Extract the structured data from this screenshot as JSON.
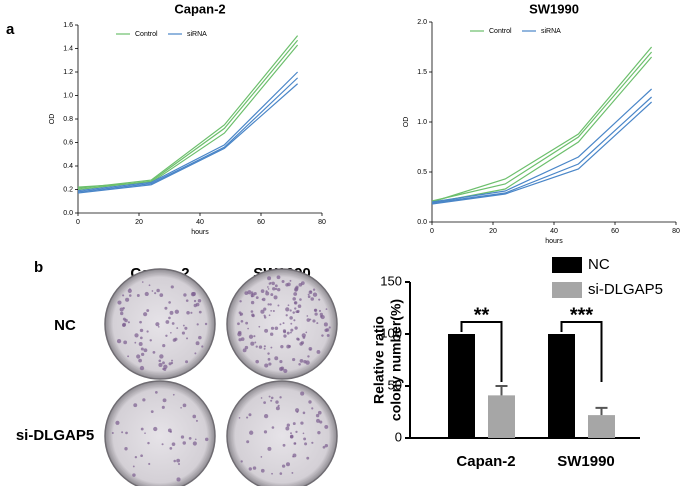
{
  "figure": {
    "panel_a": "a",
    "panel_b": "b",
    "photo_columns": [
      "Capan-2",
      "SW1990"
    ],
    "photo_rows": [
      "NC",
      "si-DLGAP5"
    ]
  },
  "chart_data": [
    {
      "type": "line",
      "title": "Capan-2",
      "xlabel": "hours",
      "ylabel": "OD",
      "x": [
        0,
        24,
        48,
        72
      ],
      "xlim": [
        0,
        80
      ],
      "xticks": [
        0,
        20,
        40,
        60,
        80
      ],
      "ylim": [
        0,
        1.6
      ],
      "yticks": [
        {
          "value": 0,
          "label": "0.0"
        },
        0.2,
        0.4,
        0.6,
        0.8,
        {
          "value": 1,
          "label": "1.0"
        },
        1.2,
        1.4,
        1.6
      ],
      "series": [
        {
          "name": "Control",
          "color": "#6cbf6c",
          "values": [
            0.21,
            0.28,
            0.75,
            1.51
          ]
        },
        {
          "name": "Control",
          "color": "#6cbf6c",
          "values": [
            0.2,
            0.27,
            0.72,
            1.47
          ]
        },
        {
          "name": "Control",
          "color": "#6cbf6c",
          "values": [
            0.22,
            0.26,
            0.68,
            1.43
          ]
        },
        {
          "name": "siRNA",
          "color": "#4a86c8",
          "values": [
            0.19,
            0.26,
            0.58,
            1.2
          ]
        },
        {
          "name": "siRNA",
          "color": "#4a86c8",
          "values": [
            0.18,
            0.25,
            0.56,
            1.15
          ]
        },
        {
          "name": "siRNA",
          "color": "#4a86c8",
          "values": [
            0.17,
            0.24,
            0.55,
            1.1
          ]
        }
      ]
    },
    {
      "type": "line",
      "title": "SW1990",
      "xlabel": "hours",
      "ylabel": "OD",
      "x": [
        0,
        24,
        48,
        72
      ],
      "xlim": [
        0,
        80
      ],
      "xticks": [
        0,
        20,
        40,
        60,
        80
      ],
      "ylim": [
        0,
        2
      ],
      "yticks": [
        {
          "value": 0,
          "label": "0.0"
        },
        0.5,
        {
          "value": 1,
          "label": "1.0"
        },
        1.5,
        {
          "value": 2,
          "label": "2.0"
        }
      ],
      "series": [
        {
          "name": "Control",
          "color": "#6cbf6c",
          "values": [
            0.2,
            0.43,
            0.88,
            1.75
          ]
        },
        {
          "name": "Control",
          "color": "#6cbf6c",
          "values": [
            0.21,
            0.38,
            0.85,
            1.7
          ]
        },
        {
          "name": "Control",
          "color": "#6cbf6c",
          "values": [
            0.19,
            0.33,
            0.8,
            1.65
          ]
        },
        {
          "name": "siRNA",
          "color": "#4a86c8",
          "values": [
            0.2,
            0.31,
            0.65,
            1.33
          ]
        },
        {
          "name": "siRNA",
          "color": "#4a86c8",
          "values": [
            0.19,
            0.29,
            0.58,
            1.25
          ]
        },
        {
          "name": "siRNA",
          "color": "#4a86c8",
          "values": [
            0.18,
            0.28,
            0.53,
            1.2
          ]
        }
      ]
    },
    {
      "type": "bar",
      "ylabel": [
        "Relative ratio",
        "colony number(%)"
      ],
      "categories": [
        "Capan-2",
        "SW1990"
      ],
      "ylim": [
        0,
        150
      ],
      "yticks": [
        0,
        50,
        100,
        150
      ],
      "series": [
        {
          "name": "NC",
          "color": "#000000",
          "values": [
            100,
            100
          ]
        },
        {
          "name": "si-DLGAP5",
          "color": "#a6a6a6",
          "values": [
            41,
            22
          ],
          "errors": [
            9,
            7
          ]
        }
      ],
      "annotations": [
        "**",
        "***"
      ]
    }
  ]
}
